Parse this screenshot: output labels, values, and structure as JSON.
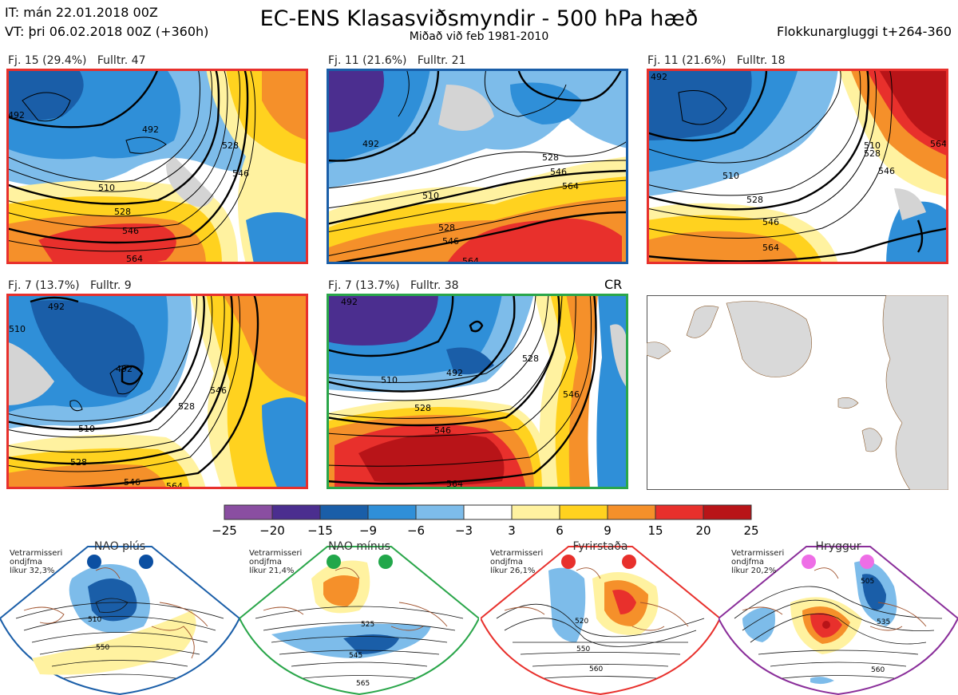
{
  "header": {
    "it_line": "IT: mán 22.01.2018 00Z",
    "vt_line": "VT: þri 06.02.2018 00Z  (+360h)",
    "title": "EC-ENS Klasasviðsmyndir - 500 hPa hæð",
    "subtitle": "Miðað við feb 1981-2010",
    "window": "Flokkunargluggi t+264-360"
  },
  "panels": [
    {
      "label": "Fj. 15 (29.4%)",
      "rep": "Fulltr. 47",
      "border": "#e8302c",
      "contours": [
        "492",
        "510",
        "528",
        "546",
        "564",
        "528",
        "546"
      ]
    },
    {
      "label": "Fj. 11 (21.6%)",
      "rep": "Fulltr. 21",
      "border": "#1a5ea8",
      "contours": [
        "492",
        "510",
        "528",
        "546",
        "564",
        "528",
        "546",
        "564"
      ]
    },
    {
      "label": "Fj. 11 (21.6%)",
      "rep": "Fulltr. 18",
      "border": "#e8302c",
      "contours": [
        "492",
        "510",
        "528",
        "546",
        "564",
        "510",
        "528",
        "546",
        "564"
      ]
    },
    {
      "label": "Fj. 7 (13.7%)",
      "rep": "Fulltr. 9",
      "border": "#e8302c",
      "contours": [
        "492",
        "492",
        "510",
        "510",
        "528",
        "546",
        "528",
        "546",
        "564"
      ]
    },
    {
      "label": "Fj. 7 (13.7%)",
      "rep": "Fulltr. 38",
      "border": "#2aa64a",
      "contours": [
        "492",
        "492",
        "510",
        "528",
        "546",
        "528",
        "546",
        "564"
      ],
      "tag": "CR"
    }
  ],
  "colorbar": {
    "ticks": [
      "−25",
      "−20",
      "−15",
      "−9",
      "−6",
      "−3",
      "3",
      "6",
      "9",
      "15",
      "20",
      "25"
    ],
    "colors": [
      "#8a4ea1",
      "#4b2e8f",
      "#1a5ea8",
      "#2f8fd8",
      "#7dbcea",
      "#ffffff",
      "#fff2a0",
      "#ffd21f",
      "#f5902a",
      "#e8302c",
      "#b81418"
    ]
  },
  "regimes": [
    {
      "name": "NAO plús",
      "note": [
        "Vetrarmisseri",
        "ondjfma",
        "líkur 32,3%"
      ],
      "color": "#1a5ea8",
      "dot": "#0b4fa2",
      "labels": [
        "510",
        "550"
      ]
    },
    {
      "name": "NAO mínus",
      "note": [
        "Vetrarmisseri",
        "ondjfma",
        "líkur 21,4%"
      ],
      "color": "#2aa64a",
      "dot": "#21a74a",
      "labels": [
        "525",
        "545",
        "565"
      ]
    },
    {
      "name": "Fyrirstaða",
      "note": [
        "Vetrarmisseri",
        "ondjfma",
        "líkur 26,1%"
      ],
      "color": "#e8302c",
      "dot": "#e8302c",
      "labels": [
        "520",
        "550",
        "560"
      ]
    },
    {
      "name": "Hryggur",
      "note": [
        "Vetrarmisseri",
        "ondjfma",
        "líkur 20,2%"
      ],
      "color": "#8a2e9a",
      "dot": "#ee6ee6",
      "labels": [
        "505",
        "535",
        "560"
      ]
    }
  ]
}
